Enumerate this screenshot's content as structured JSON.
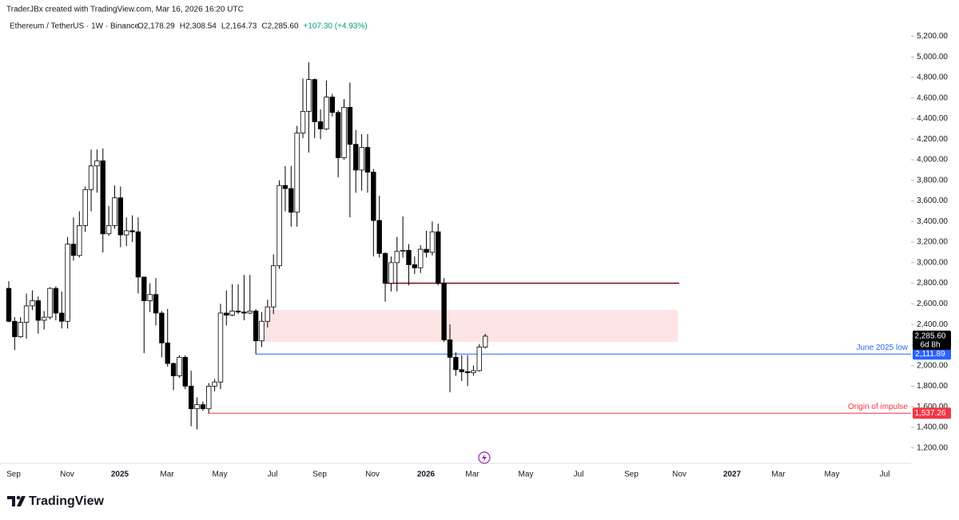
{
  "header": "TraderJBx created with TradingView.com, Mar 16, 2026 16:20 UTC",
  "footer": "TradingView",
  "chart_data": {
    "type": "candlestick",
    "title": "Ethereum / TetherUS · 1W · Binance",
    "ohlc_text": [
      "O2,178.29",
      "H2,308.54",
      "L2,164.73",
      "C2,285.60",
      "+107.30 (+4.93%)"
    ],
    "xlabels": [
      "Sep",
      "Nov",
      "2025",
      "Mar",
      "May",
      "Jul",
      "Sep",
      "Nov",
      "2026",
      "Mar",
      "May",
      "Jul",
      "Sep",
      "Nov",
      "2027",
      "Mar",
      "May",
      "Jul"
    ],
    "open": [
      2750,
      2430,
      2280,
      2420,
      2580,
      2630,
      2440,
      2470,
      2750,
      2510,
      2430,
      3180,
      3070,
      3360,
      3710,
      3940,
      3990,
      3280,
      3360,
      3630,
      3270,
      3310,
      3300,
      2860,
      2630,
      2690,
      2510,
      2220,
      2020,
      1900,
      2080,
      1800,
      1580,
      1620,
      1580,
      1800,
      1840,
      2510,
      2490,
      2530,
      2520,
      2510,
      2530,
      2240,
      2430,
      2570,
      2970,
      3750,
      3720,
      3490,
      4260,
      4470,
      4780,
      4370,
      4300,
      4610,
      4460,
      4020,
      4510,
      4150,
      3900,
      4120,
      3880,
      3410,
      3090,
      2800,
      3000,
      3110,
      3120,
      2980,
      2950,
      3130,
      3100,
      3300,
      2800,
      2250,
      2080,
      1960,
      1940,
      1930,
      1950,
      2178.29
    ],
    "high": [
      2820,
      2470,
      2470,
      2700,
      2730,
      2670,
      2530,
      2760,
      2770,
      2720,
      3250,
      3440,
      3500,
      3740,
      4100,
      4100,
      4110,
      3550,
      3750,
      3740,
      3440,
      3460,
      3440,
      2860,
      2800,
      2850,
      2530,
      2550,
      2030,
      2100,
      2100,
      1950,
      1690,
      1650,
      1830,
      1870,
      2600,
      2730,
      2790,
      2790,
      2880,
      2880,
      2550,
      2520,
      2640,
      3080,
      3800,
      3940,
      3940,
      4330,
      4790,
      4950,
      4790,
      4490,
      4770,
      4640,
      4480,
      4590,
      4750,
      4290,
      4250,
      4250,
      3910,
      3650,
      3100,
      3060,
      3250,
      3450,
      3180,
      3060,
      3170,
      3310,
      3400,
      3380,
      2850,
      2400,
      2130,
      2100,
      2100,
      2000,
      2210,
      2308.54
    ],
    "low": [
      2420,
      2150,
      2270,
      2260,
      2540,
      2310,
      2350,
      2450,
      2440,
      2360,
      2360,
      3020,
      3050,
      3300,
      3500,
      3680,
      3100,
      3260,
      3330,
      3150,
      3160,
      3200,
      2700,
      2120,
      2520,
      2390,
      2080,
      1990,
      1760,
      1880,
      1770,
      1410,
      1380,
      1560,
      1540,
      1750,
      1770,
      2390,
      2480,
      2500,
      2440,
      2500,
      2110,
      2180,
      2370,
      2500,
      2940,
      3500,
      3350,
      3350,
      4210,
      4070,
      4210,
      4200,
      4290,
      4420,
      3830,
      4000,
      3440,
      3680,
      3700,
      3680,
      3060,
      3050,
      2620,
      2720,
      2720,
      3050,
      2780,
      2890,
      2900,
      3050,
      3070,
      2780,
      2230,
      1740,
      1900,
      1850,
      1800,
      1900,
      1940,
      2164.73
    ],
    "close": [
      2430,
      2280,
      2420,
      2580,
      2630,
      2440,
      2470,
      2750,
      2510,
      2430,
      3180,
      3070,
      3360,
      3710,
      3940,
      3990,
      3280,
      3360,
      3630,
      3270,
      3310,
      3300,
      2860,
      2630,
      2690,
      2510,
      2220,
      2020,
      1900,
      2080,
      1800,
      1580,
      1620,
      1580,
      1800,
      1840,
      2510,
      2490,
      2530,
      2520,
      2510,
      2530,
      2240,
      2430,
      2570,
      2970,
      3750,
      3720,
      3490,
      4260,
      4470,
      4780,
      4370,
      4300,
      4610,
      4460,
      4020,
      4510,
      4150,
      3900,
      4120,
      3880,
      3410,
      3090,
      2800,
      3000,
      3110,
      3120,
      2980,
      2950,
      3130,
      3100,
      3300,
      2800,
      2250,
      2080,
      1960,
      1940,
      1930,
      1950,
      2180,
      2285.6
    ],
    "up_color": "#ffffff",
    "down_color": "#000000",
    "ylim": [
      1050,
      5320
    ],
    "yticks": [
      {
        "value": 1200,
        "label": "1,200.00"
      },
      {
        "value": 1400,
        "label": "1,400.00"
      },
      {
        "value": 1600,
        "label": "1,600.00"
      },
      {
        "value": 1800,
        "label": "1,800.00"
      },
      {
        "value": 2000,
        "label": "2,000.00"
      },
      {
        "value": 2200,
        "label": "2,200.00"
      },
      {
        "value": 2400,
        "label": "2,400.00"
      },
      {
        "value": 2600,
        "label": "2,600.00"
      },
      {
        "value": 2800,
        "label": "2,800.00"
      },
      {
        "value": 3000,
        "label": "3,000.00"
      },
      {
        "value": 3200,
        "label": "3,200.00"
      },
      {
        "value": 3400,
        "label": "3,400.00"
      },
      {
        "value": 3600,
        "label": "3,600.00"
      },
      {
        "value": 3800,
        "label": "3,800.00"
      },
      {
        "value": 4000,
        "label": "4,000.00"
      },
      {
        "value": 4200,
        "label": "4,200.00"
      },
      {
        "value": 4400,
        "label": "4,400.00"
      },
      {
        "value": 4600,
        "label": "4,600.00"
      },
      {
        "value": 4800,
        "label": "4,800.00"
      },
      {
        "value": 5000,
        "label": "5,000.00"
      },
      {
        "value": 5200,
        "label": "5,200.00"
      }
    ],
    "last_price": {
      "value": 2285.6,
      "label": "2,285.60",
      "countdown": "6d 8h"
    },
    "zone": {
      "low": 2230,
      "high": 2540,
      "color": "#fde4e4"
    },
    "resistance": {
      "value": 2800,
      "color": "#7b1b24"
    },
    "levels": [
      {
        "value": 2111.89,
        "label": "2,111.89",
        "name": "June 2025 low",
        "color": "#2962ff"
      },
      {
        "value": 1537.26,
        "label": "1,537.26",
        "name": "Origin of impulse",
        "color": "#f23645"
      }
    ]
  }
}
